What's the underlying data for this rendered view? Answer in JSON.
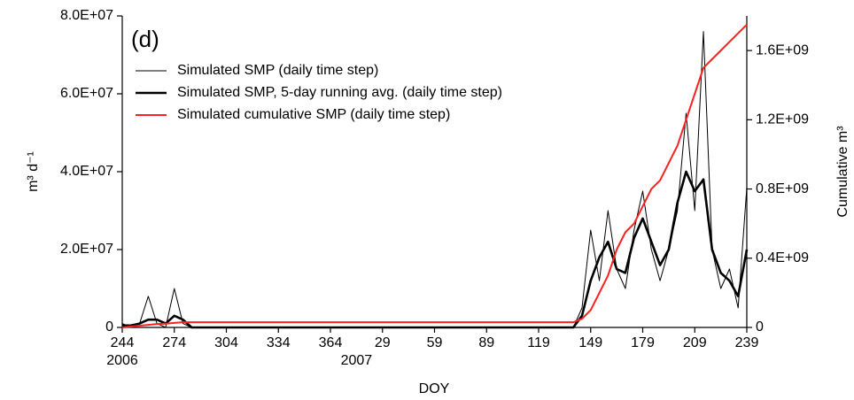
{
  "chart_data": {
    "type": "line",
    "annotation": "(d)",
    "x_label": "DOY",
    "y_label": "m³ d⁻¹",
    "y2_label": "Cumulative m³",
    "xlim": [
      0,
      360
    ],
    "xticks": [
      {
        "value": 0,
        "label": "244"
      },
      {
        "value": 30,
        "label": "274"
      },
      {
        "value": 60,
        "label": "304"
      },
      {
        "value": 90,
        "label": "334"
      },
      {
        "value": 120,
        "label": "364"
      },
      {
        "value": 150,
        "label": "29"
      },
      {
        "value": 180,
        "label": "59"
      },
      {
        "value": 210,
        "label": "89"
      },
      {
        "value": 240,
        "label": "119"
      },
      {
        "value": 270,
        "label": "149"
      },
      {
        "value": 300,
        "label": "179"
      },
      {
        "value": 330,
        "label": "209"
      },
      {
        "value": 360,
        "label": "239"
      }
    ],
    "year_labels": [
      {
        "value": 0,
        "label": "2006"
      },
      {
        "value": 135,
        "label": "2007"
      }
    ],
    "ylim": [
      0,
      80000000
    ],
    "yticks": [
      0,
      {
        "value": 20000000,
        "label": "2.0E+07"
      },
      {
        "value": 40000000,
        "label": "4.0E+07"
      },
      {
        "value": 60000000,
        "label": "6.0E+07"
      },
      {
        "value": 80000000,
        "label": "8.0E+07"
      }
    ],
    "y2lim": [
      0,
      1800000000
    ],
    "y2ticks": [
      0,
      {
        "value": 400000000,
        "label": "0.4E+09"
      },
      {
        "value": 800000000,
        "label": "0.8E+09"
      },
      {
        "value": 1200000000,
        "label": "1.2E+09"
      },
      {
        "value": 1600000000,
        "label": "1.6E+09"
      }
    ],
    "x": [
      0,
      5,
      10,
      15,
      20,
      25,
      30,
      35,
      40,
      260,
      265,
      270,
      275,
      280,
      285,
      290,
      295,
      300,
      305,
      310,
      315,
      320,
      325,
      330,
      335,
      340,
      345,
      350,
      355,
      360
    ],
    "series": [
      {
        "name": "Simulated SMP (daily time step)",
        "color": "#000000",
        "width": 1,
        "values": [
          1000000,
          0,
          1000000,
          8000000,
          1000000,
          0,
          10000000,
          1000000,
          0,
          0,
          5000000,
          25000000,
          12000000,
          30000000,
          15000000,
          10000000,
          25000000,
          35000000,
          20000000,
          12000000,
          20000000,
          30000000,
          55000000,
          30000000,
          76000000,
          20000000,
          10000000,
          15000000,
          5000000,
          36000000
        ]
      },
      {
        "name": "Simulated SMP, 5-day running avg. (daily time step)",
        "color": "#000000",
        "width": 2.6,
        "values": [
          500000,
          500000,
          1000000,
          2000000,
          2000000,
          1000000,
          3000000,
          2000000,
          0,
          0,
          3000000,
          12000000,
          18000000,
          22000000,
          15000000,
          14000000,
          23000000,
          28000000,
          22000000,
          16000000,
          20000000,
          32000000,
          40000000,
          35000000,
          38000000,
          20000000,
          14000000,
          12000000,
          8000000,
          20000000
        ]
      },
      {
        "name": "Simulated cumulative SMP (daily time step)",
        "color": "#ff2020",
        "width": 2,
        "axis": "y2",
        "values": [
          0,
          5000000,
          10000000,
          15000000,
          20000000,
          22000000,
          26000000,
          30000000,
          30000000,
          30000000,
          50000000,
          100000000,
          200000000,
          300000000,
          450000000,
          550000000,
          600000000,
          700000000,
          800000000,
          850000000,
          950000000,
          1050000000,
          1200000000,
          1350000000,
          1500000000,
          1550000000,
          1600000000,
          1650000000,
          1700000000,
          1750000000
        ]
      }
    ]
  }
}
